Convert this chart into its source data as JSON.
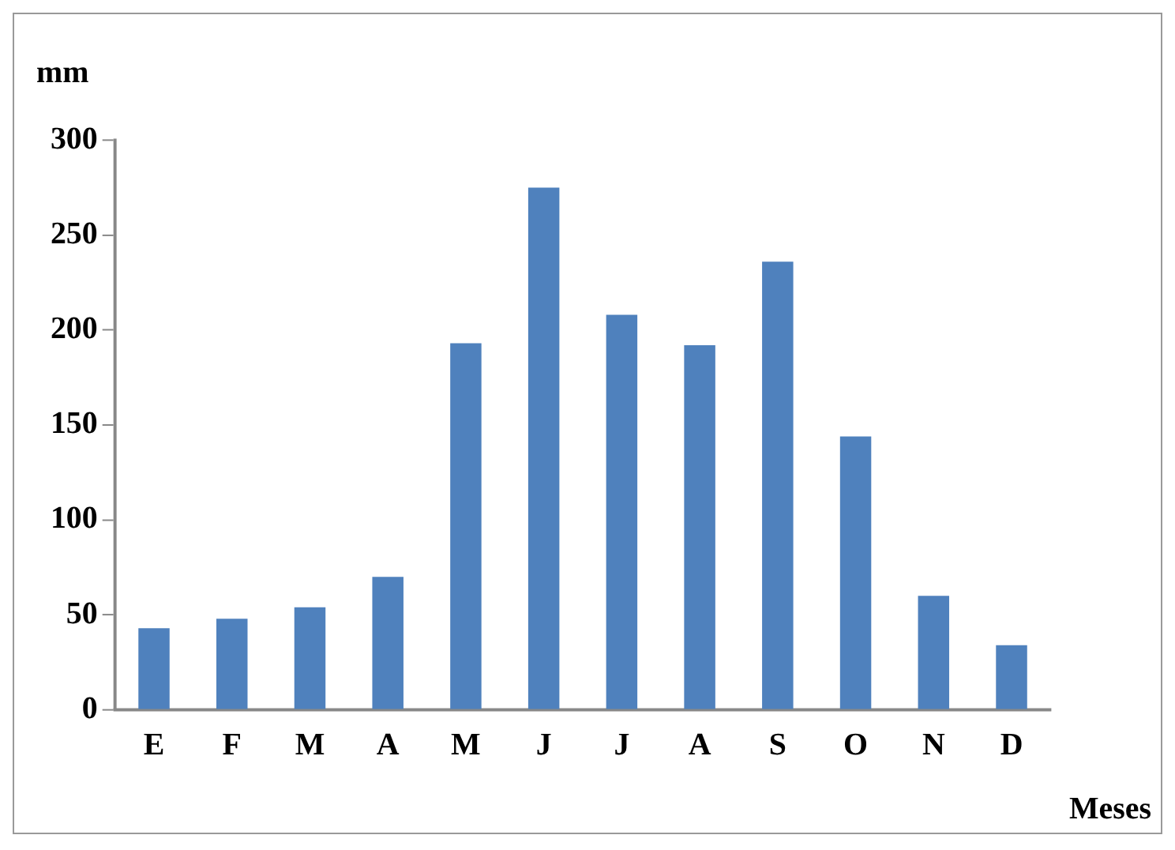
{
  "chart_data": {
    "type": "bar",
    "ylabel": "mm",
    "xlabel": "Meses",
    "categories": [
      "E",
      "F",
      "M",
      "A",
      "M",
      "J",
      "J",
      "A",
      "S",
      "O",
      "N",
      "D"
    ],
    "values": [
      43,
      48,
      54,
      70,
      193,
      275,
      208,
      192,
      236,
      144,
      60,
      34
    ],
    "color": "#4f81bd",
    "ylim": [
      0,
      300
    ],
    "yticks": [
      0,
      50,
      100,
      150,
      200,
      250,
      300
    ],
    "grid": false,
    "legend": false
  }
}
